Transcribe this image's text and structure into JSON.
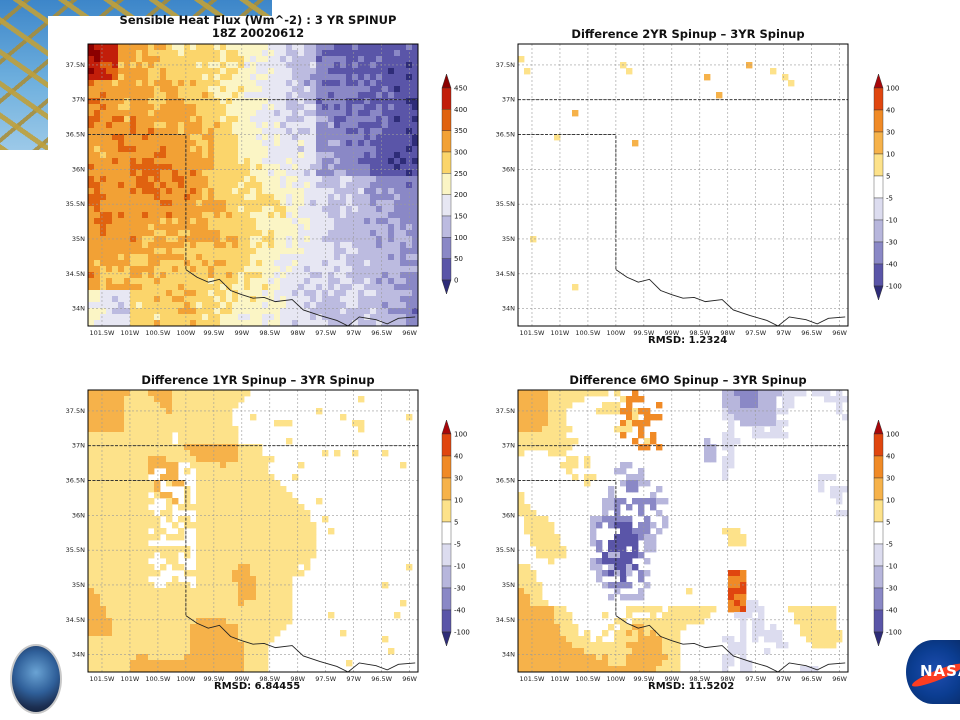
{
  "slide": {
    "left_logo_icon": "nasa-sport-seal-icon",
    "right_logo_icon": "nasa-meatball-logo-icon"
  },
  "map_axes": {
    "lat_labels": [
      "37.5N",
      "37N",
      "36.5N",
      "36N",
      "35.5N",
      "35N",
      "34.5N",
      "34N"
    ],
    "lon_labels": [
      "101.5W",
      "101W",
      "100.5W",
      "100W",
      "99.5W",
      "99W",
      "98.5W",
      "98W",
      "97.5W",
      "97W",
      "96.5W",
      "96W"
    ],
    "lat_range": [
      33.75,
      37.8
    ],
    "lon_range": [
      -101.75,
      -95.85
    ]
  },
  "panels": [
    {
      "title_line1": "Sensible Heat Flux (Wm^-2) : 3 YR SPINUP",
      "title_line2": "18Z 20020612",
      "rmsd": "",
      "field": "flux",
      "colorbar": {
        "labels": [
          "450",
          "400",
          "350",
          "300",
          "250",
          "200",
          "150",
          "100",
          "50",
          "0"
        ],
        "colors": [
          "#8b0000",
          "#c21e0a",
          "#e0620f",
          "#f2a135",
          "#fbd56b",
          "#fbf5c5",
          "#e7e7f3",
          "#bcbbe0",
          "#8a88c6",
          "#5a55a8",
          "#2e2c78"
        ]
      }
    },
    {
      "title_line1": "Difference 2YR Spinup – 3YR Spinup",
      "title_line2": "",
      "rmsd": "RMSD: 1.2324",
      "field": "diff_small",
      "colorbar": {
        "labels": [
          "100",
          "40",
          "30",
          "10",
          "5",
          "-5",
          "-10",
          "-30",
          "-40",
          "-100"
        ],
        "colors": [
          "#a8070a",
          "#e0460f",
          "#f08a26",
          "#f6b24a",
          "#fde28a",
          "#ffffff",
          "#dcdcef",
          "#b7b6dc",
          "#8a88c6",
          "#5a55a8",
          "#2e2c78"
        ]
      }
    },
    {
      "title_line1": "Difference 1YR Spinup – 3YR Spinup",
      "title_line2": "",
      "rmsd": "RMSD: 6.84455",
      "field": "diff_west",
      "colorbar": {
        "labels": [
          "100",
          "40",
          "30",
          "10",
          "5",
          "-5",
          "-10",
          "-30",
          "-40",
          "-100"
        ],
        "colors": [
          "#a8070a",
          "#e0460f",
          "#f08a26",
          "#f6b24a",
          "#fde28a",
          "#ffffff",
          "#dcdcef",
          "#b7b6dc",
          "#8a88c6",
          "#5a55a8",
          "#2e2c78"
        ]
      }
    },
    {
      "title_line1": "Difference 6MO Spinup – 3YR Spinup",
      "title_line2": "",
      "rmsd": "RMSD: 11.5202",
      "field": "diff_mixed",
      "colorbar": {
        "labels": [
          "100",
          "40",
          "30",
          "10",
          "5",
          "-5",
          "-10",
          "-30",
          "-40",
          "-100"
        ],
        "colors": [
          "#a8070a",
          "#e0460f",
          "#f08a26",
          "#f6b24a",
          "#fde28a",
          "#ffffff",
          "#dcdcef",
          "#b7b6dc",
          "#8a88c6",
          "#5a55a8",
          "#2e2c78"
        ]
      }
    }
  ]
}
